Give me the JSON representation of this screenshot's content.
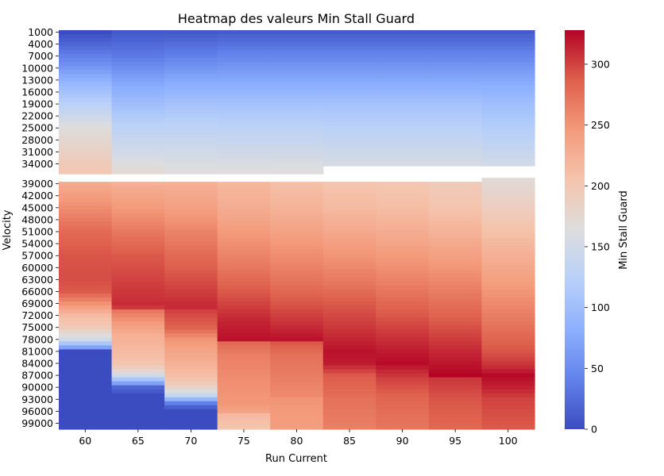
{
  "chart_data": {
    "type": "heatmap",
    "title": "Heatmap des valeurs Min Stall Guard",
    "xlabel": "Run Current",
    "ylabel": "Velocity",
    "colorbar_label": "Min Stall Guard",
    "colormap": "coolwarm",
    "vmin": 0,
    "vmax": 328,
    "x_categories": [
      "60",
      "65",
      "70",
      "75",
      "80",
      "85",
      "90",
      "95",
      "100"
    ],
    "y_tick_labels": [
      "1000",
      "4000",
      "7000",
      "10000",
      "13000",
      "16000",
      "19000",
      "22000",
      "25000",
      "28000",
      "31000",
      "34000",
      "39000",
      "42000",
      "45000",
      "48000",
      "51000",
      "54000",
      "57000",
      "60000",
      "63000",
      "66000",
      "69000",
      "72000",
      "75000",
      "78000",
      "81000",
      "84000",
      "87000",
      "90000",
      "93000",
      "96000",
      "99000"
    ],
    "colorbar_ticks": [
      0,
      50,
      100,
      150,
      200,
      250,
      300
    ],
    "velocity_min": 1000,
    "velocity_max": 100000,
    "velocity_step": 1000,
    "profiles": {
      "60": [
        [
          1000,
          0
        ],
        [
          4000,
          20
        ],
        [
          10000,
          60
        ],
        [
          13000,
          85
        ],
        [
          16000,
          105
        ],
        [
          19000,
          125
        ],
        [
          22000,
          145
        ],
        [
          25000,
          165
        ],
        [
          28000,
          175
        ],
        [
          31000,
          185
        ],
        [
          34000,
          195
        ],
        [
          36000,
          200
        ],
        [
          37000,
          null
        ],
        [
          38000,
          null
        ],
        [
          39000,
          230
        ],
        [
          45000,
          255
        ],
        [
          51000,
          280
        ],
        [
          57000,
          292
        ],
        [
          63000,
          295
        ],
        [
          66000,
          290
        ],
        [
          68000,
          265
        ],
        [
          70000,
          240
        ],
        [
          72000,
          215
        ],
        [
          75000,
          195
        ],
        [
          78000,
          150
        ],
        [
          79000,
          110
        ],
        [
          80000,
          70
        ],
        [
          81000,
          0
        ],
        [
          100000,
          0
        ]
      ],
      "65": [
        [
          1000,
          10
        ],
        [
          7000,
          35
        ],
        [
          13000,
          70
        ],
        [
          19000,
          100
        ],
        [
          25000,
          130
        ],
        [
          31000,
          150
        ],
        [
          34000,
          165
        ],
        [
          36000,
          170
        ],
        [
          37000,
          null
        ],
        [
          38000,
          null
        ],
        [
          39000,
          225
        ],
        [
          45000,
          245
        ],
        [
          51000,
          270
        ],
        [
          57000,
          290
        ],
        [
          63000,
          300
        ],
        [
          69000,
          310
        ],
        [
          70000,
          305
        ],
        [
          71000,
          270
        ],
        [
          74000,
          245
        ],
        [
          77000,
          225
        ],
        [
          84000,
          205
        ],
        [
          86000,
          175
        ],
        [
          87000,
          150
        ],
        [
          88000,
          110
        ],
        [
          89000,
          70
        ],
        [
          90000,
          20
        ],
        [
          91000,
          10
        ],
        [
          92000,
          0
        ],
        [
          100000,
          0
        ]
      ],
      "70": [
        [
          1000,
          10
        ],
        [
          7000,
          40
        ],
        [
          13000,
          75
        ],
        [
          19000,
          105
        ],
        [
          25000,
          130
        ],
        [
          31000,
          150
        ],
        [
          34000,
          160
        ],
        [
          36000,
          165
        ],
        [
          37000,
          null
        ],
        [
          38000,
          null
        ],
        [
          39000,
          225
        ],
        [
          45000,
          240
        ],
        [
          51000,
          262
        ],
        [
          57000,
          280
        ],
        [
          63000,
          295
        ],
        [
          69000,
          310
        ],
        [
          70000,
          310
        ],
        [
          71000,
          300
        ],
        [
          75000,
          285
        ],
        [
          78000,
          250
        ],
        [
          81000,
          235
        ],
        [
          84000,
          225
        ],
        [
          88000,
          205
        ],
        [
          90000,
          180
        ],
        [
          92000,
          140
        ],
        [
          93000,
          90
        ],
        [
          94000,
          40
        ],
        [
          95000,
          15
        ],
        [
          96000,
          0
        ],
        [
          100000,
          0
        ]
      ],
      "75": [
        [
          1000,
          12
        ],
        [
          7000,
          45
        ],
        [
          13000,
          75
        ],
        [
          19000,
          105
        ],
        [
          25000,
          128
        ],
        [
          31000,
          148
        ],
        [
          34000,
          158
        ],
        [
          36000,
          165
        ],
        [
          37000,
          null
        ],
        [
          38000,
          null
        ],
        [
          39000,
          218
        ],
        [
          45000,
          228
        ],
        [
          51000,
          245
        ],
        [
          57000,
          262
        ],
        [
          63000,
          280
        ],
        [
          69000,
          300
        ],
        [
          74000,
          315
        ],
        [
          78000,
          322
        ],
        [
          79000,
          280
        ],
        [
          82000,
          265
        ],
        [
          88000,
          255
        ],
        [
          94000,
          248
        ],
        [
          96000,
          238
        ],
        [
          97000,
          215
        ],
        [
          100000,
          205
        ]
      ],
      "80": [
        [
          1000,
          12
        ],
        [
          7000,
          45
        ],
        [
          13000,
          75
        ],
        [
          19000,
          105
        ],
        [
          25000,
          128
        ],
        [
          31000,
          148
        ],
        [
          34000,
          160
        ],
        [
          36000,
          165
        ],
        [
          37000,
          null
        ],
        [
          38000,
          null
        ],
        [
          39000,
          210
        ],
        [
          45000,
          222
        ],
        [
          51000,
          238
        ],
        [
          57000,
          255
        ],
        [
          63000,
          272
        ],
        [
          69000,
          292
        ],
        [
          74000,
          308
        ],
        [
          78000,
          322
        ],
        [
          79000,
          290
        ],
        [
          82000,
          275
        ],
        [
          88000,
          265
        ],
        [
          92000,
          258
        ],
        [
          93000,
          250
        ],
        [
          100000,
          242
        ]
      ],
      "85": [
        [
          1000,
          12
        ],
        [
          7000,
          45
        ],
        [
          13000,
          75
        ],
        [
          19000,
          105
        ],
        [
          25000,
          125
        ],
        [
          31000,
          145
        ],
        [
          34000,
          155
        ],
        [
          35000,
          null
        ],
        [
          38000,
          null
        ],
        [
          39000,
          205
        ],
        [
          45000,
          215
        ],
        [
          51000,
          232
        ],
        [
          57000,
          250
        ],
        [
          63000,
          268
        ],
        [
          69000,
          290
        ],
        [
          75000,
          305
        ],
        [
          81000,
          322
        ],
        [
          84000,
          318
        ],
        [
          87000,
          290
        ],
        [
          93000,
          275
        ],
        [
          100000,
          265
        ]
      ],
      "90": [
        [
          1000,
          12
        ],
        [
          7000,
          45
        ],
        [
          13000,
          75
        ],
        [
          19000,
          105
        ],
        [
          25000,
          125
        ],
        [
          31000,
          145
        ],
        [
          34000,
          155
        ],
        [
          35000,
          null
        ],
        [
          38000,
          null
        ],
        [
          39000,
          202
        ],
        [
          45000,
          212
        ],
        [
          51000,
          228
        ],
        [
          57000,
          245
        ],
        [
          63000,
          262
        ],
        [
          69000,
          282
        ],
        [
          75000,
          300
        ],
        [
          81000,
          318
        ],
        [
          84000,
          325
        ],
        [
          88000,
          300
        ],
        [
          93000,
          282
        ],
        [
          100000,
          272
        ]
      ],
      "95": [
        [
          1000,
          12
        ],
        [
          7000,
          45
        ],
        [
          13000,
          75
        ],
        [
          19000,
          105
        ],
        [
          25000,
          125
        ],
        [
          31000,
          145
        ],
        [
          34000,
          155
        ],
        [
          35000,
          null
        ],
        [
          38000,
          null
        ],
        [
          39000,
          195
        ],
        [
          45000,
          205
        ],
        [
          51000,
          222
        ],
        [
          57000,
          240
        ],
        [
          63000,
          258
        ],
        [
          69000,
          276
        ],
        [
          75000,
          294
        ],
        [
          81000,
          312
        ],
        [
          87000,
          328
        ],
        [
          88000,
          305
        ],
        [
          93000,
          292
        ],
        [
          100000,
          282
        ]
      ],
      "100": [
        [
          1000,
          12
        ],
        [
          7000,
          45
        ],
        [
          13000,
          75
        ],
        [
          19000,
          100
        ],
        [
          25000,
          120
        ],
        [
          31000,
          140
        ],
        [
          34000,
          150
        ],
        [
          35000,
          null
        ],
        [
          37000,
          null
        ],
        [
          38000,
          170
        ],
        [
          45000,
          190
        ],
        [
          51000,
          208
        ],
        [
          57000,
          225
        ],
        [
          63000,
          240
        ],
        [
          69000,
          258
        ],
        [
          75000,
          275
        ],
        [
          81000,
          292
        ],
        [
          85000,
          310
        ],
        [
          87000,
          326
        ],
        [
          90000,
          315
        ],
        [
          93000,
          300
        ],
        [
          100000,
          290
        ]
      ]
    }
  }
}
